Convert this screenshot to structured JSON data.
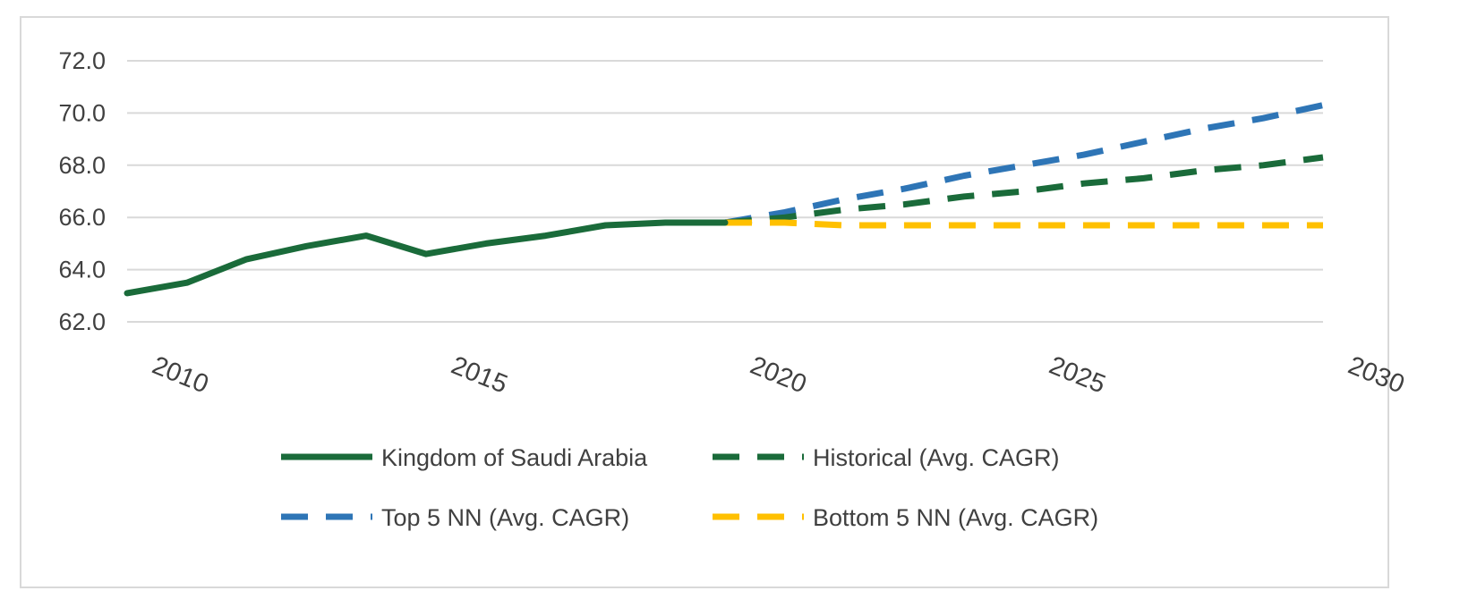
{
  "chart_data": {
    "type": "line",
    "title": "",
    "xlabel": "",
    "ylabel": "",
    "xlim": [
      2010,
      2030
    ],
    "ylim": [
      62.0,
      72.0
    ],
    "x_ticks": [
      2010,
      2015,
      2020,
      2025,
      2030
    ],
    "x_tick_labels": [
      "2010",
      "2015",
      "2020",
      "2025",
      "2030"
    ],
    "y_ticks": [
      62.0,
      64.0,
      66.0,
      68.0,
      70.0,
      72.0
    ],
    "y_tick_labels": [
      "62.0",
      "64.0",
      "66.0",
      "68.0",
      "70.0",
      "72.0"
    ],
    "grid": true,
    "legend_position": "bottom",
    "series": [
      {
        "name": "Kingdom of Saudi Arabia",
        "color": "#1a6b3a",
        "style": "solid",
        "x": [
          2010,
          2011,
          2012,
          2013,
          2014,
          2015,
          2016,
          2017,
          2018,
          2019,
          2020
        ],
        "values": [
          63.1,
          63.5,
          64.4,
          64.9,
          65.3,
          64.6,
          65.0,
          65.3,
          65.7,
          65.8,
          65.8
        ]
      },
      {
        "name": "Historical (Avg. CAGR)",
        "color": "#1a6b3a",
        "style": "dashed",
        "x": [
          2020,
          2021,
          2022,
          2023,
          2024,
          2025,
          2026,
          2027,
          2028,
          2029,
          2030
        ],
        "values": [
          65.8,
          66.0,
          66.3,
          66.5,
          66.8,
          67.0,
          67.3,
          67.5,
          67.8,
          68.0,
          68.3
        ]
      },
      {
        "name": "Top 5 NN (Avg. CAGR)",
        "color": "#2e75b6",
        "style": "dashed",
        "x": [
          2020,
          2021,
          2022,
          2023,
          2024,
          2025,
          2026,
          2027,
          2028,
          2029,
          2030
        ],
        "values": [
          65.8,
          66.2,
          66.7,
          67.1,
          67.6,
          68.0,
          68.4,
          68.9,
          69.4,
          69.8,
          70.3
        ]
      },
      {
        "name": "Bottom 5 NN (Avg. CAGR)",
        "color": "#ffc000",
        "style": "dashed",
        "x": [
          2020,
          2021,
          2022,
          2023,
          2024,
          2025,
          2026,
          2027,
          2028,
          2029,
          2030
        ],
        "values": [
          65.8,
          65.8,
          65.7,
          65.7,
          65.7,
          65.7,
          65.7,
          65.7,
          65.7,
          65.7,
          65.7
        ]
      }
    ],
    "legend": [
      {
        "label": "Kingdom of Saudi Arabia",
        "color": "#1a6b3a",
        "style": "solid"
      },
      {
        "label": "Historical (Avg. CAGR)",
        "color": "#1a6b3a",
        "style": "dashed"
      },
      {
        "label": "Top 5 NN (Avg. CAGR)",
        "color": "#2e75b6",
        "style": "dashed"
      },
      {
        "label": "Bottom 5 NN (Avg. CAGR)",
        "color": "#ffc000",
        "style": "dashed"
      }
    ]
  }
}
